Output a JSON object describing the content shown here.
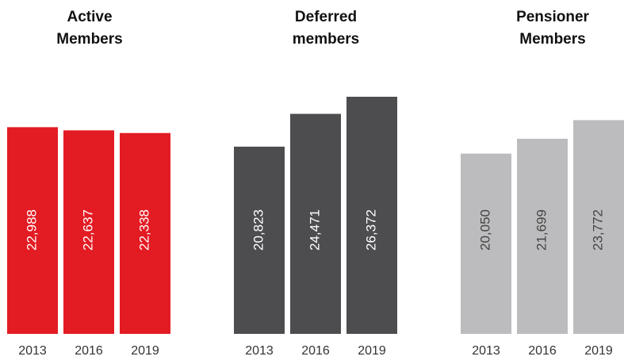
{
  "chart_data": [
    {
      "type": "bar",
      "title": [
        "Active",
        "Members"
      ],
      "categories": [
        "2013",
        "2016",
        "2019"
      ],
      "values": [
        22988,
        22637,
        22338
      ],
      "value_labels": [
        "22,988",
        "22,637",
        "22,338"
      ],
      "color": "#e31b23",
      "label_color": "#ffffff"
    },
    {
      "type": "bar",
      "title": [
        "Deferred",
        "members"
      ],
      "categories": [
        "2013",
        "2016",
        "2019"
      ],
      "values": [
        20823,
        24471,
        26372
      ],
      "value_labels": [
        "20,823",
        "24,471",
        "26,372"
      ],
      "color": "#4d4d50",
      "label_color": "#ffffff"
    },
    {
      "type": "bar",
      "title": [
        "Pensioner",
        "Members"
      ],
      "categories": [
        "2013",
        "2016",
        "2019"
      ],
      "values": [
        20050,
        21699,
        23772
      ],
      "value_labels": [
        "20,050",
        "21,699",
        "23,772"
      ],
      "color": "#bcbcbe",
      "label_color": "#444444"
    }
  ]
}
